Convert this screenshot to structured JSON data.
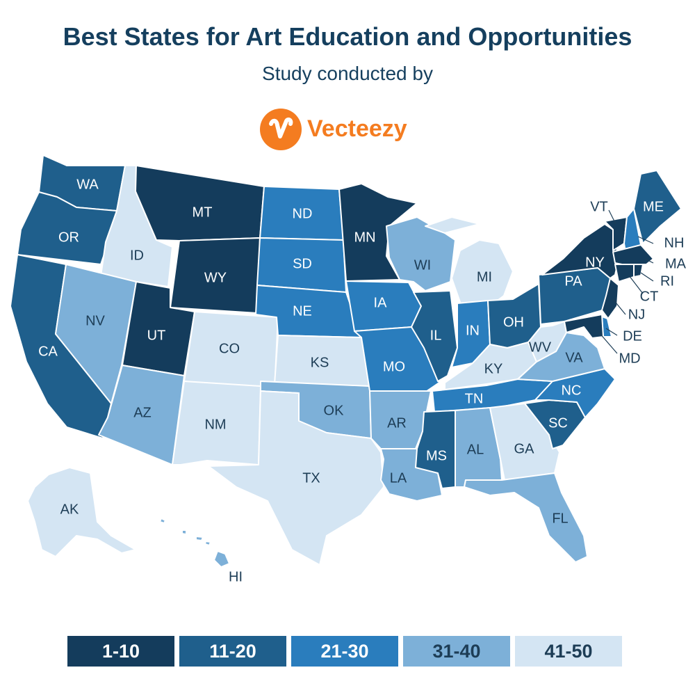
{
  "title": "Best States for Art Education and Opportunities",
  "subtitle": "Study conducted by",
  "brand": {
    "name": "Vecteezy",
    "icon": "vecteezy-v-logo-icon",
    "color": "#f47c20"
  },
  "colors": {
    "tier1": "#143c5c",
    "tier2": "#1f5f8c",
    "tier3": "#2a7dbd",
    "tier4": "#7db0d8",
    "tier5": "#d4e5f3",
    "title": "#153f5e"
  },
  "legend": [
    {
      "label": "1-10",
      "tier": 1
    },
    {
      "label": "11-20",
      "tier": 2
    },
    {
      "label": "21-30",
      "tier": 3
    },
    {
      "label": "31-40",
      "tier": 4
    },
    {
      "label": "41-50",
      "tier": 5
    }
  ],
  "states": {
    "WA": {
      "label": "WA",
      "tier": 2
    },
    "OR": {
      "label": "OR",
      "tier": 2
    },
    "CA": {
      "label": "CA",
      "tier": 2
    },
    "ID": {
      "label": "ID",
      "tier": 5
    },
    "NV": {
      "label": "NV",
      "tier": 4
    },
    "MT": {
      "label": "MT",
      "tier": 1
    },
    "WY": {
      "label": "WY",
      "tier": 1
    },
    "UT": {
      "label": "UT",
      "tier": 1
    },
    "AZ": {
      "label": "AZ",
      "tier": 4
    },
    "CO": {
      "label": "CO",
      "tier": 5
    },
    "NM": {
      "label": "NM",
      "tier": 5
    },
    "ND": {
      "label": "ND",
      "tier": 3
    },
    "SD": {
      "label": "SD",
      "tier": 3
    },
    "NE": {
      "label": "NE",
      "tier": 3
    },
    "KS": {
      "label": "KS",
      "tier": 5
    },
    "OK": {
      "label": "OK",
      "tier": 4
    },
    "TX": {
      "label": "TX",
      "tier": 5
    },
    "MN": {
      "label": "MN",
      "tier": 1
    },
    "IA": {
      "label": "IA",
      "tier": 3
    },
    "MO": {
      "label": "MO",
      "tier": 3
    },
    "AR": {
      "label": "AR",
      "tier": 4
    },
    "LA": {
      "label": "LA",
      "tier": 4
    },
    "WI": {
      "label": "WI",
      "tier": 4
    },
    "IL": {
      "label": "IL",
      "tier": 2
    },
    "MI": {
      "label": "MI",
      "tier": 5
    },
    "IN": {
      "label": "IN",
      "tier": 3
    },
    "OH": {
      "label": "OH",
      "tier": 2
    },
    "KY": {
      "label": "KY",
      "tier": 5
    },
    "TN": {
      "label": "TN",
      "tier": 3
    },
    "MS": {
      "label": "MS",
      "tier": 2
    },
    "AL": {
      "label": "AL",
      "tier": 4
    },
    "GA": {
      "label": "GA",
      "tier": 5
    },
    "FL": {
      "label": "FL",
      "tier": 4
    },
    "SC": {
      "label": "SC",
      "tier": 2
    },
    "NC": {
      "label": "NC",
      "tier": 3
    },
    "VA": {
      "label": "VA",
      "tier": 4
    },
    "WV": {
      "label": "WV",
      "tier": 5
    },
    "PA": {
      "label": "PA",
      "tier": 2
    },
    "NY": {
      "label": "NY",
      "tier": 1
    },
    "VT": {
      "label": "VT",
      "tier": 1
    },
    "NH": {
      "label": "NH",
      "tier": 3
    },
    "ME": {
      "label": "ME",
      "tier": 2
    },
    "MA": {
      "label": "MA",
      "tier": 1
    },
    "RI": {
      "label": "RI",
      "tier": 1
    },
    "CT": {
      "label": "CT",
      "tier": 1
    },
    "NJ": {
      "label": "NJ",
      "tier": 1
    },
    "DE": {
      "label": "DE",
      "tier": 3
    },
    "MD": {
      "label": "MD",
      "tier": 1
    },
    "AK": {
      "label": "AK",
      "tier": 5
    },
    "HI": {
      "label": "HI",
      "tier": 4
    }
  }
}
